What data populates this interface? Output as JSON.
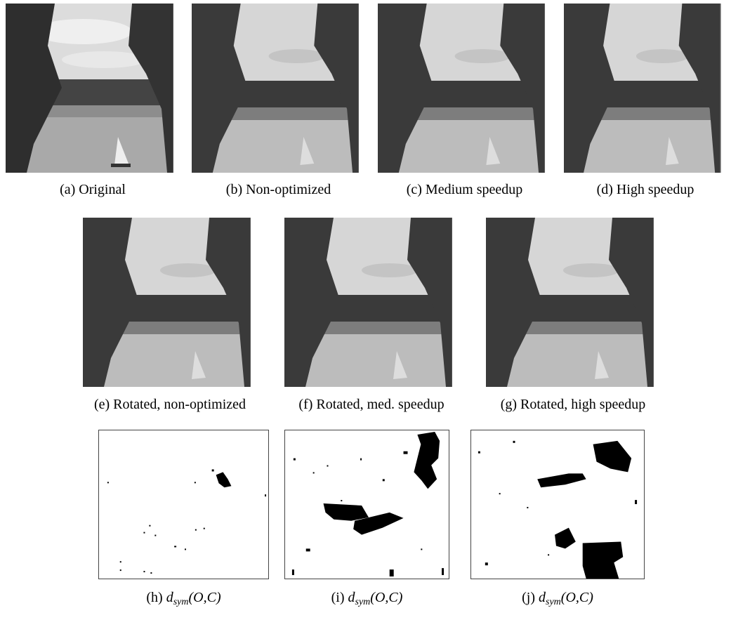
{
  "row1": [
    {
      "label": "(a) Original"
    },
    {
      "label": "(b) Non-optimized"
    },
    {
      "label": "(c) Medium speedup"
    },
    {
      "label": "(d) High speedup"
    }
  ],
  "row2": [
    {
      "label": "(e) Rotated, non-optimized"
    },
    {
      "label": "(f) Rotated, med. speedup"
    },
    {
      "label": "(g) Rotated, high speedup"
    }
  ],
  "row3": [
    {
      "prefix": "(h) ",
      "d": "d",
      "sub": "sym",
      "args": "(O,C)"
    },
    {
      "prefix": "(i) ",
      "d": "d",
      "sub": "sym",
      "args": "(O,C)"
    },
    {
      "prefix": "(j) ",
      "d": "d",
      "sub": "sym",
      "args": "(O,C)"
    }
  ],
  "colors": {
    "dark": "#3a3a3a",
    "mid": "#7d7d7d",
    "light": "#c8c8c8",
    "sky": "#d8d8d8"
  }
}
